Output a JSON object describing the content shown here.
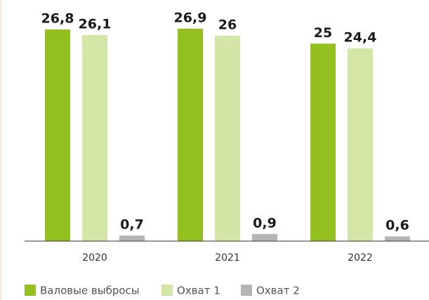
{
  "chart_data": {
    "type": "bar",
    "categories": [
      "2020",
      "2021",
      "2022"
    ],
    "series": [
      {
        "name": "Валовые выбросы",
        "color": "#93c01f",
        "values": [
          26.8,
          26.9,
          25
        ],
        "value_labels": [
          "26,8",
          "26,9",
          "25"
        ]
      },
      {
        "name": "Охват 1",
        "color": "#d4e6a5",
        "values": [
          26.1,
          26,
          24.4
        ],
        "value_labels": [
          "26,1",
          "26",
          "24,4"
        ]
      },
      {
        "name": "Охват 2",
        "color": "#b4b4b4",
        "values": [
          0.7,
          0.9,
          0.6
        ],
        "value_labels": [
          "0,7",
          "0,9",
          "0,6"
        ]
      }
    ],
    "legend": "bottom-left"
  }
}
